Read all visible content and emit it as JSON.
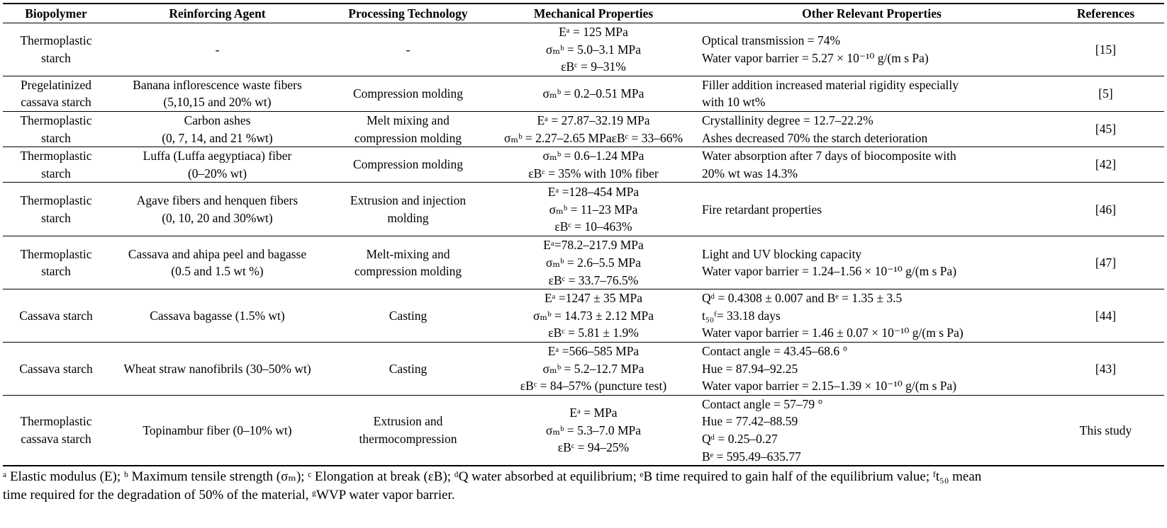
{
  "headers": [
    "Biopolymer",
    "Reinforcing Agent",
    "Processing Technology",
    "Mechanical Properties",
    "Other Relevant Properties",
    "References"
  ],
  "rows": [
    {
      "biopolymer": [
        "Thermoplastic",
        "starch"
      ],
      "agent": [
        "-"
      ],
      "processing": [
        "-"
      ],
      "mechanical": [
        "Eᵃ = 125 MPa",
        "σₘᵇ = 5.0–3.1 MPa",
        "εBᶜ = 9–31%"
      ],
      "other": [
        "Optical transmission = 74%",
        "Water vapor barrier = 5.27 × 10⁻¹⁰ g/(m s Pa)"
      ],
      "reference": "[15]"
    },
    {
      "biopolymer": [
        "Pregelatinized",
        "cassava starch"
      ],
      "agent": [
        "Banana inflorescence waste fibers",
        "(5,10,15 and 20% wt)"
      ],
      "processing": [
        "Compression molding"
      ],
      "mechanical": [
        "σₘᵇ = 0.2–0.51 MPa"
      ],
      "other": [
        "Filler addition increased material rigidity especially",
        "with 10 wt%"
      ],
      "reference": "[5]"
    },
    {
      "biopolymer": [
        "Thermoplastic",
        "starch"
      ],
      "agent": [
        "Carbon ashes",
        "(0, 7, 14, and 21 %wt)"
      ],
      "processing": [
        "Melt mixing and",
        "compression molding"
      ],
      "mechanical": [
        "Eᵃ = 27.87–32.19 MPa",
        "σₘᵇ = 2.27–2.65 MPaεBᶜ = 33–66%"
      ],
      "other": [
        "Crystallinity degree = 12.7–22.2%",
        "Ashes decreased 70% the starch deterioration"
      ],
      "reference": "[45]"
    },
    {
      "biopolymer": [
        "Thermoplastic",
        "starch"
      ],
      "agent": [
        "Luffa (Luffa aegyptiaca) fiber",
        "(0–20% wt)"
      ],
      "processing": [
        "Compression molding"
      ],
      "mechanical": [
        "σₘᵇ = 0.6–1.24 MPa",
        "εBᶜ = 35% with 10% fiber"
      ],
      "other": [
        "Water absorption after 7 days of biocomposite with",
        "20% wt was 14.3%"
      ],
      "reference": "[42]"
    },
    {
      "biopolymer": [
        "Thermoplastic",
        "starch"
      ],
      "agent": [
        "Agave fibers and henquen fibers",
        "(0, 10, 20 and 30%wt)"
      ],
      "processing": [
        "Extrusion and injection",
        "molding"
      ],
      "mechanical": [
        "Eᵃ =128–454 MPa",
        "σₘᵇ = 11–23 MPa",
        "εBᶜ = 10–463%"
      ],
      "other": [
        "Fire retardant properties"
      ],
      "reference": "[46]"
    },
    {
      "biopolymer": [
        "Thermoplastic",
        "starch"
      ],
      "agent": [
        "Cassava and ahipa peel and bagasse",
        "(0.5 and 1.5 wt %)"
      ],
      "processing": [
        "Melt-mixing and",
        "compression molding"
      ],
      "mechanical": [
        "Eᵃ=78.2–217.9 MPa",
        "σₘᵇ = 2.6–5.5 MPa",
        "εBᶜ = 33.7–76.5%"
      ],
      "other": [
        "Light and UV blocking capacity",
        "Water vapor barrier = 1.24–1.56 × 10⁻¹⁰ g/(m s Pa)"
      ],
      "reference": "[47]"
    },
    {
      "biopolymer": [
        "Cassava starch"
      ],
      "agent": [
        "Cassava bagasse (1.5% wt)"
      ],
      "processing": [
        "Casting"
      ],
      "mechanical": [
        "Eᵃ =1247 ± 35 MPa",
        "σₘᵇ = 14.73 ± 2.12 MPa",
        "εBᶜ = 5.81 ± 1.9%"
      ],
      "other": [
        "Qᵈ = 0.4308 ± 0.007 and Bᵉ = 1.35 ± 3.5",
        "t₅₀ᶠ= 33.18 days",
        "Water vapor barrier = 1.46 ± 0.07 × 10⁻¹⁰ g/(m s Pa)"
      ],
      "reference": "[44]"
    },
    {
      "biopolymer": [
        "Cassava starch"
      ],
      "agent": [
        "Wheat straw nanofibrils (30–50% wt)"
      ],
      "processing": [
        "Casting"
      ],
      "mechanical": [
        "Eᵃ =566–585 MPa",
        "σₘᵇ = 5.2–12.7 MPa",
        "εBᶜ = 84–57% (puncture test)"
      ],
      "other": [
        "Contact angle = 43.45–68.6 °",
        "Hue = 87.94–92.25",
        "Water vapor barrier = 2.15–1.39 × 10⁻¹⁰ g/(m s Pa)"
      ],
      "reference": "[43]"
    },
    {
      "biopolymer": [
        "Thermoplastic",
        "cassava starch"
      ],
      "agent": [
        "Topinambur fiber (0–10% wt)"
      ],
      "processing": [
        "Extrusion and",
        "thermocompression"
      ],
      "mechanical": [
        "Eᵃ = MPa",
        "σₘᵇ = 5.3–7.0 MPa",
        "εBᶜ = 94–25%"
      ],
      "other": [
        "Contact angle = 57–79 °",
        "Hue = 77.42–88.59",
        "Qᵈ = 0.25–0.27",
        "Bᵉ = 595.49–635.77"
      ],
      "reference": "This study"
    }
  ],
  "footnote": [
    "ᵃ Elastic modulus (E); ᵇ Maximum tensile strength (σₘ); ᶜ Elongation at break (εB); ᵈQ water absorbed at equilibrium; ᵉB time required to gain half of the equilibrium value; ᶠt₅₀ mean",
    "time required for the degradation of 50% of the material, ᵍWVP water vapor barrier."
  ]
}
